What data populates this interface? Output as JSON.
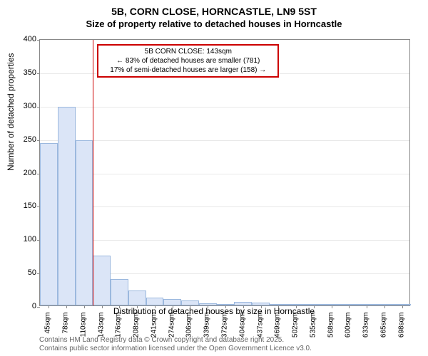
{
  "title": "5B, CORN CLOSE, HORNCASTLE, LN9 5ST",
  "subtitle": "Size of property relative to detached houses in Horncastle",
  "ylabel": "Number of detached properties",
  "xlabel": "Distribution of detached houses by size in Horncastle",
  "footer1": "Contains HM Land Registry data © Crown copyright and database right 2025.",
  "footer2": "Contains public sector information licensed under the Open Government Licence v3.0.",
  "chart": {
    "type": "bar",
    "ylim": [
      0,
      400
    ],
    "ytick_step": 50,
    "yticks": [
      0,
      50,
      100,
      150,
      200,
      250,
      300,
      350,
      400
    ],
    "categories": [
      "45sqm",
      "78sqm",
      "110sqm",
      "143sqm",
      "176sqm",
      "208sqm",
      "241sqm",
      "274sqm",
      "306sqm",
      "339sqm",
      "372sqm",
      "404sqm",
      "437sqm",
      "469sqm",
      "502sqm",
      "535sqm",
      "568sqm",
      "600sqm",
      "633sqm",
      "665sqm",
      "698sqm"
    ],
    "values": [
      243,
      298,
      248,
      75,
      40,
      22,
      12,
      10,
      8,
      3,
      2,
      5,
      4,
      1,
      2,
      1,
      1,
      2,
      0,
      1,
      1
    ],
    "bar_fill": "#dbe5f7",
    "bar_border": "#9bb8de",
    "grid_color": "#e8e8e8",
    "axis_color": "#888888",
    "background": "#ffffff",
    "refline_x_index": 3,
    "refline_color": "#cc0000"
  },
  "callout": {
    "line1": "5B CORN CLOSE: 143sqm",
    "line2": "← 83% of detached houses are smaller (781)",
    "line3": "17% of semi-detached houses are larger (158) →",
    "border_color": "#cc0000"
  }
}
